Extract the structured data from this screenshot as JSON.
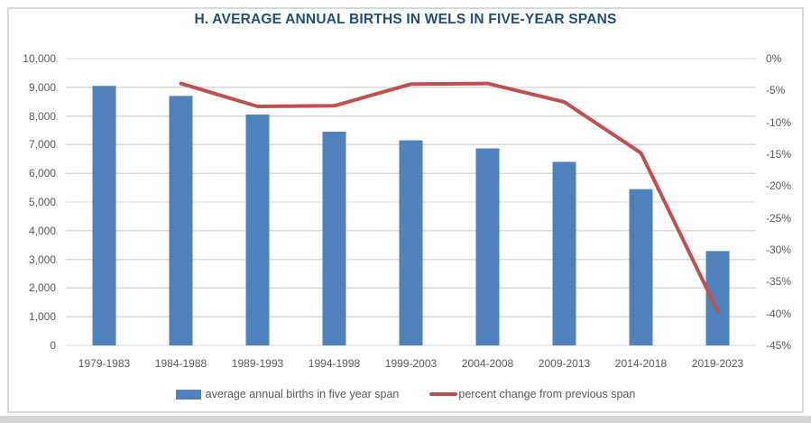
{
  "chart_data": {
    "type": "bar",
    "title": "H. AVERAGE ANNUAL BIRTHS IN WELS IN FIVE-YEAR SPANS",
    "categories": [
      "1979-1983",
      "1984-1988",
      "1989-1993",
      "1994-1998",
      "1999-2003",
      "2004-2008",
      "2009-2013",
      "2014-2018",
      "2019-2023"
    ],
    "series": [
      {
        "name": "average annual births in five year span",
        "type": "bar",
        "axis": "left",
        "color": "#4f81bd",
        "values": [
          9050,
          8700,
          8050,
          7450,
          7150,
          6870,
          6400,
          5450,
          3290
        ]
      },
      {
        "name": "percent change from previous span",
        "type": "line",
        "axis": "right",
        "color": "#c0504d",
        "values": [
          null,
          -3.9,
          -7.5,
          -7.4,
          -4.0,
          -3.9,
          -6.8,
          -14.8,
          -39.6
        ]
      }
    ],
    "left_axis": {
      "min": 0,
      "max": 10000,
      "step": 1000,
      "tick_labels": [
        "10,000",
        "9,000",
        "8,000",
        "7,000",
        "6,000",
        "5,000",
        "4,000",
        "3,000",
        "2,000",
        "1,000",
        "0"
      ]
    },
    "right_axis": {
      "min": -45,
      "max": 0,
      "step": -5,
      "tick_labels": [
        "0%",
        "-5%",
        "-10%",
        "-15%",
        "-20%",
        "-25%",
        "-30%",
        "-35%",
        "-40%",
        "-45%"
      ]
    },
    "grid": true,
    "legend_position": "bottom"
  },
  "colors": {
    "bar": "#4f81bd",
    "line": "#c0504d",
    "title": "#1f4e79",
    "axis_text": "#595959",
    "gridline": "#d9d9d9",
    "panel_border": "#d9d9d9"
  }
}
